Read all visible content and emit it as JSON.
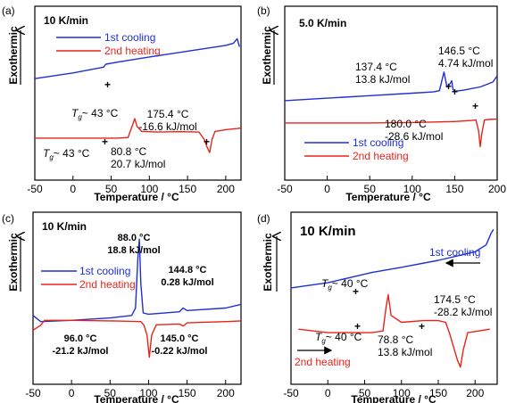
{
  "colors": {
    "cooling": "#1f2fd6",
    "heating": "#e8231a",
    "axis": "#000000"
  },
  "chart_data": [
    {
      "id": "a",
      "type": "line",
      "panel_label": "(a)",
      "rate": "10 K/min",
      "xlabel": "Temperature / °C",
      "ylabel": "Exothermic",
      "xlim": [
        -50,
        220
      ],
      "xticks": [
        -50,
        0,
        50,
        100,
        150,
        200
      ],
      "series": [
        {
          "name": "1st cooling",
          "color": "#1f2fd6",
          "x": [
            -50,
            0,
            40,
            43,
            60,
            100,
            150,
            200,
            210,
            215,
            218
          ],
          "y": [
            10,
            12,
            14,
            15,
            15.8,
            17.5,
            19.5,
            21.5,
            22.2,
            23.8,
            21
          ]
        },
        {
          "name": "2nd heating",
          "color": "#e8231a",
          "x": [
            -50,
            0,
            40,
            43,
            60,
            72,
            78,
            80.8,
            84,
            90,
            110,
            140,
            165,
            172,
            175.4,
            179,
            182,
            186,
            200,
            215,
            220
          ],
          "y": [
            -10.5,
            -10.5,
            -10.5,
            -10.5,
            -10.5,
            -10.3,
            -6,
            -3.8,
            -6.5,
            -8.2,
            -8.4,
            -8.3,
            -8.4,
            -11,
            -13.5,
            -15.5,
            -11,
            -8.2,
            -7.6,
            -7.2,
            -7
          ]
        }
      ],
      "annotations": [
        {
          "text": "80.8 °C",
          "sub": "20.7 kJ/mol"
        },
        {
          "text": "175.4 °C",
          "sub": "-16.6 kJ/mol"
        }
      ],
      "tg_labels": [
        "~ 43 °C",
        "~ 43 °C"
      ]
    },
    {
      "id": "b",
      "type": "line",
      "panel_label": "(b)",
      "rate": "5.0 K/min",
      "xlabel": "Temperature / °C",
      "ylabel": "Exothermic",
      "xlim": [
        -50,
        200
      ],
      "xticks": [
        -50,
        0,
        50,
        100,
        150,
        200
      ],
      "series": [
        {
          "name": "1st cooling",
          "color": "#1f2fd6",
          "x": [
            -50,
            0,
            50,
            100,
            125,
            132,
            137.4,
            141,
            144,
            146.5,
            148,
            150,
            160,
            180,
            195,
            200
          ],
          "y": [
            2,
            3,
            4,
            5,
            5.5,
            6,
            13.5,
            7.5,
            8.5,
            10,
            6.5,
            5.8,
            6.2,
            7.5,
            9.5,
            12
          ]
        },
        {
          "name": "2nd heating",
          "color": "#e8231a",
          "x": [
            -50,
            0,
            50,
            100,
            150,
            170,
            175,
            178,
            180,
            182,
            185,
            190,
            200
          ],
          "y": [
            -7,
            -7,
            -7,
            -6.8,
            -6.4,
            -6,
            -5.8,
            -10,
            -16.5,
            -11,
            -5.8,
            -5.6,
            -5.4
          ]
        }
      ],
      "annotations": [
        {
          "text": "137.4 °C",
          "sub": "13.8 kJ/mol"
        },
        {
          "text": "146.5 °C",
          "sub": "4.74 kJ/mol"
        },
        {
          "text": "180.0 °C",
          "sub": "-28.6 kJ/mol"
        }
      ]
    },
    {
      "id": "c",
      "type": "line",
      "panel_label": "(c)",
      "rate": "10 K/min",
      "xlabel": "Temperature / °C",
      "ylabel": "Exothermic",
      "xlim": [
        -50,
        220
      ],
      "xticks": [
        -50,
        0,
        50,
        100,
        150,
        200
      ],
      "series": [
        {
          "name": "1st cooling",
          "color": "#1f2fd6",
          "x": [
            -50,
            -40,
            0,
            50,
            78,
            83,
            86,
            88,
            90,
            93,
            100,
            140,
            144.8,
            150,
            200,
            220
          ],
          "y": [
            3,
            0.5,
            1,
            2,
            3,
            6,
            26,
            34,
            16,
            4,
            3.5,
            4.5,
            6,
            5,
            6,
            7.5
          ]
        },
        {
          "name": "2nd heating",
          "color": "#e8231a",
          "x": [
            -50,
            -40,
            -35,
            0,
            50,
            90,
            94,
            96,
            98,
            101,
            104,
            110,
            140,
            145,
            150,
            200,
            220
          ],
          "y": [
            -3,
            -1,
            1,
            1,
            0.8,
            0.5,
            -1,
            -3,
            -5,
            -14,
            -5,
            -0.8,
            -0.5,
            -1.3,
            0,
            0.5,
            0.8
          ]
        }
      ],
      "annotations": [
        {
          "text": "88.0 °C",
          "sub": "18.8 kJ/mol"
        },
        {
          "text": "144.8 °C",
          "sub": "0.28 kJ/mol"
        },
        {
          "text": "96.0 °C",
          "sub": "-21.2 kJ/mol"
        },
        {
          "text": "145.0 °C",
          "sub": "-0.22 kJ/mol"
        }
      ]
    },
    {
      "id": "d",
      "type": "line",
      "panel_label": "(d)",
      "rate": "10 K/min",
      "xlabel": "Temperature / °C",
      "ylabel": "Exothermic",
      "xlim": [
        -50,
        230
      ],
      "xticks": [
        -50,
        0,
        50,
        100,
        150,
        200
      ],
      "series": [
        {
          "name": "1st cooling",
          "color": "#1f2fd6",
          "x": [
            -50,
            0,
            40,
            60,
            100,
            150,
            200,
            215,
            222,
            225
          ],
          "y": [
            10,
            11.5,
            13.5,
            14.5,
            16,
            18,
            20.5,
            22.5,
            26,
            27
          ]
        },
        {
          "name": "2nd heating",
          "color": "#e8231a",
          "x": [
            -40,
            -20,
            0,
            30,
            40,
            60,
            75,
            78.8,
            82,
            86,
            100,
            130,
            150,
            160,
            165,
            172,
            176,
            180,
            184,
            190,
            205,
            220
          ],
          "y": [
            -2,
            -2.5,
            -3,
            -3,
            -3,
            -3,
            -2.5,
            4,
            8,
            2,
            0,
            0.5,
            0.5,
            0,
            -3,
            -8,
            -11,
            -13,
            -8,
            -3,
            -2.5,
            -2
          ]
        }
      ],
      "annotations": [
        {
          "text": "78.8 °C",
          "sub": "13.8 kJ/mol"
        },
        {
          "text": "174.5 °C",
          "sub": "-28.2 kJ/mol"
        }
      ],
      "tg_labels": [
        "~ 40 °C",
        "~ 40 °C"
      ]
    }
  ]
}
